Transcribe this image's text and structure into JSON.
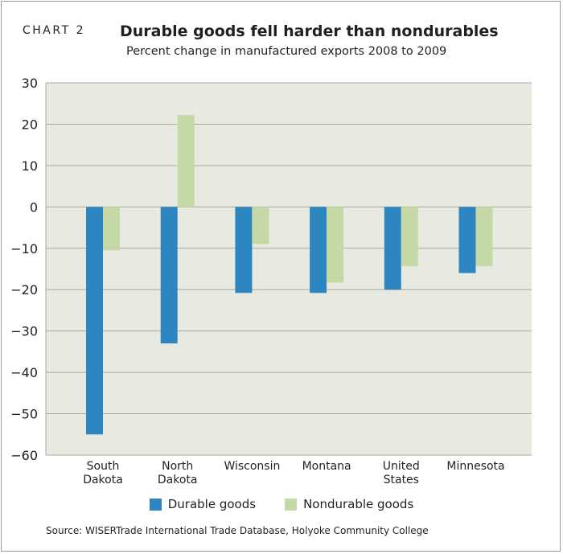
{
  "header": {
    "chart_label": "CHART 2",
    "title": "Durable goods fell harder than nondurables",
    "subtitle": "Percent change in manufactured exports 2008 to 2009"
  },
  "legend": {
    "durable_label": "Durable goods",
    "nondurable_label": "Nondurable goods"
  },
  "source": "Source: WISERTrade International Trade Database, Holyoke Community College",
  "colors": {
    "durable": "#2e86c1",
    "nondurable": "#c5d9a6",
    "plot_bg": "#e8eae1",
    "grid": "#a8aa9c"
  },
  "chart_data": {
    "type": "bar",
    "categories": [
      [
        "South",
        "Dakota"
      ],
      [
        "North",
        "Dakota"
      ],
      [
        "Wisconsin"
      ],
      [
        "Montana"
      ],
      [
        "United",
        "States"
      ],
      [
        "Minnesota"
      ]
    ],
    "series": [
      {
        "name": "Durable goods",
        "values": [
          -55,
          -33,
          -20.8,
          -20.8,
          -20,
          -16
        ]
      },
      {
        "name": "Nondurable goods",
        "values": [
          -10.5,
          22.2,
          -9,
          -18.3,
          -14.3,
          -14.3
        ]
      }
    ],
    "ylim": [
      -60,
      30
    ],
    "yticks": [
      30,
      20,
      10,
      0,
      -10,
      -20,
      -30,
      -40,
      -50,
      -60
    ],
    "grid": true,
    "legend_position": "bottom"
  }
}
